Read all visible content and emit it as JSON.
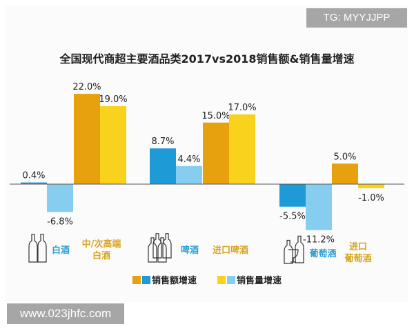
{
  "watermark_top": "TG: MYYJJPP",
  "watermark_bottom": "www.023jhfc.com",
  "chart_data": {
    "type": "bar",
    "title": "全国现代商超主要酒品类2017vs2018销售额&销售量增速",
    "categories": [
      "白酒",
      "中/次高端白酒",
      "啤酒",
      "进口啤酒",
      "葡萄酒",
      "进口葡萄酒"
    ],
    "category_labels": [
      "白酒",
      "中/次高端\n白酒",
      "啤酒",
      "进口啤酒",
      "葡萄酒",
      "进口\n葡萄酒"
    ],
    "series": [
      {
        "name": "销售额增速",
        "values": [
          0.4,
          22.0,
          8.7,
          15.0,
          -5.5,
          5.0
        ]
      },
      {
        "name": "销售量增速",
        "values": [
          -6.8,
          19.0,
          4.4,
          17.0,
          -11.2,
          -1.0
        ]
      }
    ],
    "value_labels": [
      [
        "0.4%",
        "22.0%",
        "8.7%",
        "15.0%",
        "-5.5%",
        "5.0%"
      ],
      [
        "-6.8%",
        "19.0%",
        "4.4%",
        "17.0%",
        "-11.2%",
        "-1.0%"
      ]
    ],
    "colors": {
      "domestic_sales": "#1e9bd7",
      "domestic_volume": "#86cdef",
      "import_sales": "#e7a10d",
      "import_volume": "#f8d21c",
      "domestic_label": "#2a9fd6",
      "import_label": "#d9a520"
    },
    "legend_position": "bottom",
    "grid": false
  }
}
